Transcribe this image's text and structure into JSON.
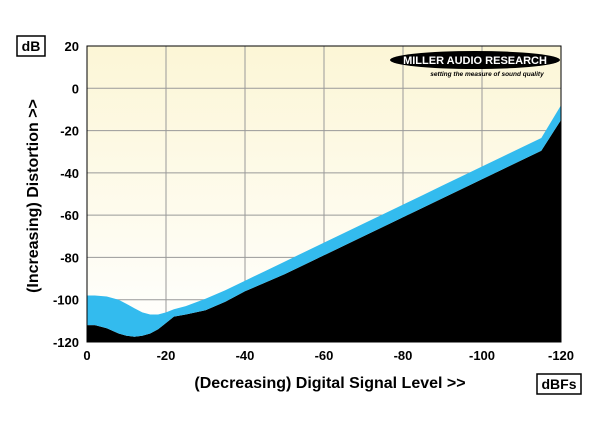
{
  "chart_data": {
    "type": "area",
    "xlabel": "(Decreasing) Digital Signal Level >>",
    "ylabel": "(Increasing) Distortion >>",
    "x_unit": "dBFs",
    "y_unit": "dB",
    "xlim": [
      0,
      -120
    ],
    "ylim": [
      -120,
      20
    ],
    "x_ticks": [
      "0",
      "-20",
      "-40",
      "-60",
      "-80",
      "-100",
      "-120"
    ],
    "y_ticks": [
      "20",
      "0",
      "-20",
      "-40",
      "-60",
      "-80",
      "-100",
      "-120"
    ],
    "grid": true,
    "logo": {
      "name": "MILLER AUDIO RESEARCH",
      "tagline": "setting the measure of sound quality"
    },
    "series": [
      {
        "x": [
          0,
          -2,
          -5,
          -8,
          -10,
          -12,
          -14,
          -16,
          -18,
          -20,
          -22,
          -25,
          -30,
          -35,
          -40,
          -45,
          -50,
          -55,
          -60,
          -65,
          -70,
          -75,
          -80,
          -85,
          -90,
          -95,
          -100,
          -105,
          -110,
          -115,
          -120
        ],
        "upper": [
          -98,
          -98,
          -98.5,
          -100,
          -102,
          -104,
          -106,
          -107,
          -107,
          -106,
          -104.5,
          -103,
          -99.5,
          -95.5,
          -91,
          -86.5,
          -82,
          -77.5,
          -73,
          -68.5,
          -64,
          -59.5,
          -55,
          -50.5,
          -46,
          -41.5,
          -37,
          -32.5,
          -28,
          -23.5,
          -8
        ],
        "lower": [
          -112,
          -112,
          -113.5,
          -116,
          -117,
          -117.5,
          -117,
          -116,
          -114,
          -111,
          -108,
          -107,
          -105,
          -101,
          -96,
          -92,
          -88,
          -83.5,
          -79,
          -74.5,
          -70,
          -65.5,
          -61,
          -56.5,
          -52,
          -47.5,
          -43,
          -38.5,
          -34,
          -29.5,
          -15
        ],
        "color": "#33bbee",
        "fill_below": "#000000"
      }
    ]
  }
}
